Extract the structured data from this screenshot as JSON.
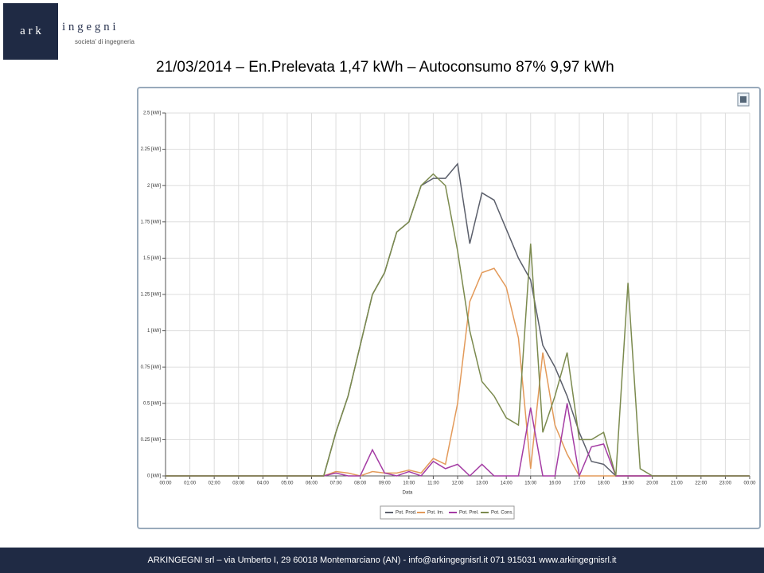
{
  "logo": {
    "left": "a r k",
    "right": "i n g e g n i",
    "tagline": "societa' di ingegneria"
  },
  "title": "21/03/2014 – En.Prelevata 1,47  kWh – Autoconsumo 87% 9,97 kWh",
  "footer": "ARKINGEGNI srl – via Umberto I, 29 60018 Montemarciano (AN) - info@arkingegnisrl.it 071 915031 www.arkingegnisrl.it",
  "chart_data": {
    "type": "line",
    "x_label": "Data",
    "grid": true,
    "legend": "bottom",
    "x": [
      0,
      1,
      2,
      3,
      4,
      5,
      6,
      6.5,
      7,
      7.5,
      8,
      8.5,
      9,
      9.5,
      10,
      10.5,
      11,
      11.5,
      12,
      12.5,
      13,
      13.5,
      14,
      14.5,
      15,
      15.5,
      16,
      16.5,
      17,
      17.5,
      18,
      18.5,
      19,
      19.5,
      20,
      21,
      22,
      23,
      24
    ],
    "xlim": [
      0,
      24
    ],
    "xticks": [
      {
        "value": 0,
        "label": "00:00"
      },
      {
        "value": 1,
        "label": "01:00"
      },
      {
        "value": 2,
        "label": "02:00"
      },
      {
        "value": 3,
        "label": "03:00"
      },
      {
        "value": 4,
        "label": "04:00"
      },
      {
        "value": 5,
        "label": "05:00"
      },
      {
        "value": 6,
        "label": "06:00"
      },
      {
        "value": 7,
        "label": "07:00"
      },
      {
        "value": 8,
        "label": "08:00"
      },
      {
        "value": 9,
        "label": "09:00"
      },
      {
        "value": 10,
        "label": "10:00"
      },
      {
        "value": 11,
        "label": "11:00"
      },
      {
        "value": 12,
        "label": "12:00"
      },
      {
        "value": 13,
        "label": "13:00"
      },
      {
        "value": 14,
        "label": "14:00"
      },
      {
        "value": 15,
        "label": "15:00"
      },
      {
        "value": 16,
        "label": "16:00"
      },
      {
        "value": 17,
        "label": "17:00"
      },
      {
        "value": 18,
        "label": "18:00"
      },
      {
        "value": 19,
        "label": "19:00"
      },
      {
        "value": 20,
        "label": "20:00"
      },
      {
        "value": 21,
        "label": "21:00"
      },
      {
        "value": 22,
        "label": "22:00"
      },
      {
        "value": 23,
        "label": "23:00"
      },
      {
        "value": 24,
        "label": "00:00"
      }
    ],
    "ylim": [
      0,
      2.5
    ],
    "yticks": [
      {
        "value": 0,
        "label": "0 [kW]"
      },
      {
        "value": 0.25,
        "label": "0.25 [kW]"
      },
      {
        "value": 0.5,
        "label": "0.5 [kW]"
      },
      {
        "value": 0.75,
        "label": "0.75 [kW]"
      },
      {
        "value": 1,
        "label": "1 [kW]"
      },
      {
        "value": 1.25,
        "label": "1.25 [kW]"
      },
      {
        "value": 1.5,
        "label": "1.5 [kW]"
      },
      {
        "value": 1.75,
        "label": "1.75 [kW]"
      },
      {
        "value": 2,
        "label": "2 [kW]"
      },
      {
        "value": 2.25,
        "label": "2.25 [kW]"
      },
      {
        "value": 2.5,
        "label": "2.5 [kW]"
      }
    ],
    "series": [
      {
        "name": "Pot. Prod.",
        "color": "#5b5f6b",
        "values": [
          0,
          0,
          0,
          0,
          0,
          0,
          0,
          0,
          0.3,
          0.55,
          0.9,
          1.25,
          1.4,
          1.68,
          1.75,
          2.0,
          2.05,
          2.05,
          2.15,
          1.6,
          1.95,
          1.9,
          1.7,
          1.5,
          1.35,
          0.9,
          0.75,
          0.55,
          0.3,
          0.1,
          0.08,
          0,
          0,
          0,
          0,
          0,
          0,
          0,
          0
        ]
      },
      {
        "name": "Pot. Im.",
        "color": "#e39a5a",
        "values": [
          0,
          0,
          0,
          0,
          0,
          0,
          0,
          0,
          0.03,
          0.02,
          0,
          0.03,
          0.02,
          0.02,
          0.04,
          0.02,
          0.12,
          0.08,
          0.5,
          1.2,
          1.4,
          1.43,
          1.3,
          0.95,
          0.05,
          0.85,
          0.35,
          0.15,
          0,
          0,
          0,
          0,
          0,
          0,
          0,
          0,
          0,
          0,
          0
        ]
      },
      {
        "name": "Pot. Prel.",
        "color": "#a43ca4",
        "values": [
          0,
          0,
          0,
          0,
          0,
          0,
          0,
          0,
          0.02,
          0,
          0,
          0.18,
          0.02,
          0,
          0.03,
          0,
          0.1,
          0.05,
          0.08,
          0,
          0.08,
          0,
          0,
          0,
          0.47,
          0,
          0,
          0.5,
          0,
          0.2,
          0.22,
          0,
          0,
          0,
          0,
          0,
          0,
          0,
          0
        ]
      },
      {
        "name": "Pot. Cons.",
        "color": "#7b8a4e",
        "values": [
          0,
          0,
          0,
          0,
          0,
          0,
          0,
          0,
          0.3,
          0.55,
          0.9,
          1.25,
          1.4,
          1.68,
          1.75,
          2.0,
          2.08,
          2.0,
          1.55,
          1.0,
          0.65,
          0.55,
          0.4,
          0.35,
          1.6,
          0.3,
          0.55,
          0.85,
          0.25,
          0.25,
          0.3,
          0,
          1.33,
          0.05,
          0,
          0,
          0,
          0,
          0
        ]
      }
    ]
  }
}
